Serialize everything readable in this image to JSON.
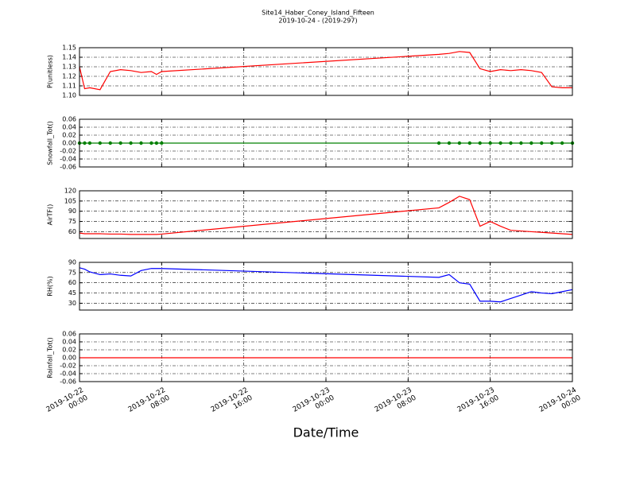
{
  "figure": {
    "title": "Site14_Haber_Coney_Island_Fifteen",
    "subtitle": "2019-10-24 - (2019-297)",
    "xlabel": "Date/Time"
  },
  "chart_data": [
    {
      "type": "line",
      "ylabel": "P(unitless)",
      "grid": true,
      "x": [
        "2019-10-22 00:00",
        "2019-10-22 00:30",
        "2019-10-22 01:00",
        "2019-10-22 02:00",
        "2019-10-22 03:00",
        "2019-10-22 04:00",
        "2019-10-22 05:00",
        "2019-10-22 06:00",
        "2019-10-22 07:00",
        "2019-10-22 07:30",
        "2019-10-22 08:00",
        "2019-10-23 11:00",
        "2019-10-23 12:00",
        "2019-10-23 13:00",
        "2019-10-23 14:00",
        "2019-10-23 15:00",
        "2019-10-23 16:00",
        "2019-10-23 17:00",
        "2019-10-23 18:00",
        "2019-10-23 19:00",
        "2019-10-23 20:00",
        "2019-10-23 21:00",
        "2019-10-23 22:00",
        "2019-10-23 23:00",
        "2019-10-24 00:00"
      ],
      "series": [
        {
          "color": "#ff0000",
          "values": [
            1.13,
            1.107,
            1.108,
            1.106,
            1.125,
            1.127,
            1.126,
            1.124,
            1.125,
            1.122,
            1.125,
            1.143,
            1.144,
            1.146,
            1.145,
            1.128,
            1.125,
            1.127,
            1.126,
            1.127,
            1.126,
            1.124,
            1.109,
            1.108,
            1.108
          ]
        }
      ],
      "xlim": [
        "2019-10-22 00:00",
        "2019-10-24 00:00"
      ],
      "xticks": [
        "2019-10-22 00:00",
        "2019-10-22 08:00",
        "2019-10-22 16:00",
        "2019-10-23 00:00",
        "2019-10-23 08:00",
        "2019-10-23 16:00",
        "2019-10-24 00:00"
      ],
      "ylim": [
        1.1,
        1.15
      ],
      "yticks": [
        {
          "value": 1.1,
          "label": "1.10"
        },
        1.11,
        1.12,
        1.13,
        1.14,
        1.15
      ]
    },
    {
      "type": "line",
      "ylabel": "Snowfall_Tot()",
      "grid": true,
      "markers": true,
      "x": [
        "2019-10-22 00:00",
        "2019-10-22 00:30",
        "2019-10-22 01:00",
        "2019-10-22 02:00",
        "2019-10-22 03:00",
        "2019-10-22 04:00",
        "2019-10-22 05:00",
        "2019-10-22 06:00",
        "2019-10-22 07:00",
        "2019-10-22 07:30",
        "2019-10-22 08:00",
        "2019-10-23 11:00",
        "2019-10-23 12:00",
        "2019-10-23 13:00",
        "2019-10-23 14:00",
        "2019-10-23 15:00",
        "2019-10-23 16:00",
        "2019-10-23 17:00",
        "2019-10-23 18:00",
        "2019-10-23 19:00",
        "2019-10-23 20:00",
        "2019-10-23 21:00",
        "2019-10-23 22:00",
        "2019-10-23 23:00",
        "2019-10-24 00:00"
      ],
      "series": [
        {
          "color": "#008000",
          "values": [
            0,
            0,
            0,
            0,
            0,
            0,
            0,
            0,
            0,
            0,
            0,
            0,
            0,
            0,
            0,
            0,
            0,
            0,
            0,
            0,
            0,
            0,
            0,
            0,
            0
          ]
        }
      ],
      "xlim": [
        "2019-10-22 00:00",
        "2019-10-24 00:00"
      ],
      "xticks": [
        "2019-10-22 00:00",
        "2019-10-22 08:00",
        "2019-10-22 16:00",
        "2019-10-23 00:00",
        "2019-10-23 08:00",
        "2019-10-23 16:00",
        "2019-10-24 00:00"
      ],
      "ylim": [
        -0.06,
        0.06
      ],
      "yticks": [
        {
          "value": -0.06,
          "label": "-0.06"
        },
        {
          "value": -0.04,
          "label": "-0.04"
        },
        {
          "value": -0.02,
          "label": "-0.02"
        },
        {
          "value": 0,
          "label": "0.00"
        },
        {
          "value": 0.02,
          "label": "0.02"
        },
        {
          "value": 0.04,
          "label": "0.04"
        },
        {
          "value": 0.06,
          "label": "0.06"
        }
      ]
    },
    {
      "type": "line",
      "ylabel": "AirTF()",
      "grid": true,
      "x": [
        "2019-10-22 00:00",
        "2019-10-22 00:30",
        "2019-10-22 01:00",
        "2019-10-22 02:00",
        "2019-10-22 03:00",
        "2019-10-22 04:00",
        "2019-10-22 05:00",
        "2019-10-22 06:00",
        "2019-10-22 07:00",
        "2019-10-22 07:30",
        "2019-10-22 08:00",
        "2019-10-23 11:00",
        "2019-10-23 12:00",
        "2019-10-23 13:00",
        "2019-10-23 14:00",
        "2019-10-23 15:00",
        "2019-10-23 16:00",
        "2019-10-23 17:00",
        "2019-10-23 18:00",
        "2019-10-23 19:00",
        "2019-10-23 20:00",
        "2019-10-23 21:00",
        "2019-10-23 22:00",
        "2019-10-23 23:00",
        "2019-10-24 00:00"
      ],
      "series": [
        {
          "color": "#ff0000",
          "values": [
            58,
            57,
            57,
            57,
            56.5,
            56.5,
            56,
            56,
            56,
            56,
            56.5,
            95,
            103,
            112,
            107,
            68,
            75,
            68,
            62,
            61,
            60,
            59,
            58,
            57,
            56
          ]
        }
      ],
      "xlim": [
        "2019-10-22 00:00",
        "2019-10-24 00:00"
      ],
      "xticks": [
        "2019-10-22 00:00",
        "2019-10-22 08:00",
        "2019-10-22 16:00",
        "2019-10-23 00:00",
        "2019-10-23 08:00",
        "2019-10-23 16:00",
        "2019-10-24 00:00"
      ],
      "ylim": [
        50,
        120
      ],
      "yticks": [
        60,
        75,
        90,
        105,
        120
      ]
    },
    {
      "type": "line",
      "ylabel": "RH(%)",
      "grid": true,
      "x": [
        "2019-10-22 00:00",
        "2019-10-22 00:30",
        "2019-10-22 01:00",
        "2019-10-22 02:00",
        "2019-10-22 03:00",
        "2019-10-22 04:00",
        "2019-10-22 05:00",
        "2019-10-22 06:00",
        "2019-10-22 07:00",
        "2019-10-22 07:30",
        "2019-10-22 08:00",
        "2019-10-23 11:00",
        "2019-10-23 12:00",
        "2019-10-23 13:00",
        "2019-10-23 14:00",
        "2019-10-23 15:00",
        "2019-10-23 16:00",
        "2019-10-23 17:00",
        "2019-10-23 18:00",
        "2019-10-23 19:00",
        "2019-10-23 20:00",
        "2019-10-23 21:00",
        "2019-10-23 22:00",
        "2019-10-23 23:00",
        "2019-10-24 00:00"
      ],
      "series": [
        {
          "color": "#0000ff",
          "values": [
            82,
            80,
            76,
            72,
            73,
            71,
            70,
            78,
            81,
            81,
            81,
            68,
            72,
            60,
            58,
            33,
            33,
            32,
            37,
            42,
            47,
            45,
            44,
            47,
            50
          ]
        }
      ],
      "xlim": [
        "2019-10-22 00:00",
        "2019-10-24 00:00"
      ],
      "xticks": [
        "2019-10-22 00:00",
        "2019-10-22 08:00",
        "2019-10-22 16:00",
        "2019-10-23 00:00",
        "2019-10-23 08:00",
        "2019-10-23 16:00",
        "2019-10-24 00:00"
      ],
      "ylim": [
        20,
        90
      ],
      "yticks": [
        30,
        45,
        60,
        75,
        90
      ]
    },
    {
      "type": "line",
      "ylabel": "Rainfall_Tot()",
      "grid": true,
      "xticklabels": true,
      "x": [
        "2019-10-22 00:00",
        "2019-10-22 00:30",
        "2019-10-22 01:00",
        "2019-10-22 02:00",
        "2019-10-22 03:00",
        "2019-10-22 04:00",
        "2019-10-22 05:00",
        "2019-10-22 06:00",
        "2019-10-22 07:00",
        "2019-10-22 07:30",
        "2019-10-22 08:00",
        "2019-10-23 11:00",
        "2019-10-23 12:00",
        "2019-10-23 13:00",
        "2019-10-23 14:00",
        "2019-10-23 15:00",
        "2019-10-23 16:00",
        "2019-10-23 17:00",
        "2019-10-23 18:00",
        "2019-10-23 19:00",
        "2019-10-23 20:00",
        "2019-10-23 21:00",
        "2019-10-23 22:00",
        "2019-10-23 23:00",
        "2019-10-24 00:00"
      ],
      "series": [
        {
          "color": "#ff0000",
          "values": [
            0,
            0,
            0,
            0,
            0,
            0,
            0,
            0,
            0,
            0,
            0,
            0,
            0,
            0,
            0,
            0,
            0,
            0,
            0,
            0,
            0,
            0,
            0,
            0,
            0
          ]
        }
      ],
      "xlim": [
        "2019-10-22 00:00",
        "2019-10-24 00:00"
      ],
      "xticks": [
        "2019-10-22 00:00",
        "2019-10-22 08:00",
        "2019-10-22 16:00",
        "2019-10-23 00:00",
        "2019-10-23 08:00",
        "2019-10-23 16:00",
        "2019-10-24 00:00"
      ],
      "ylim": [
        -0.06,
        0.06
      ],
      "yticks": [
        {
          "value": -0.06,
          "label": "-0.06"
        },
        {
          "value": -0.04,
          "label": "-0.04"
        },
        {
          "value": -0.02,
          "label": "-0.02"
        },
        {
          "value": 0,
          "label": "0.00"
        },
        {
          "value": 0.02,
          "label": "0.02"
        },
        {
          "value": 0.04,
          "label": "0.04"
        },
        {
          "value": 0.06,
          "label": "0.06"
        }
      ]
    }
  ]
}
